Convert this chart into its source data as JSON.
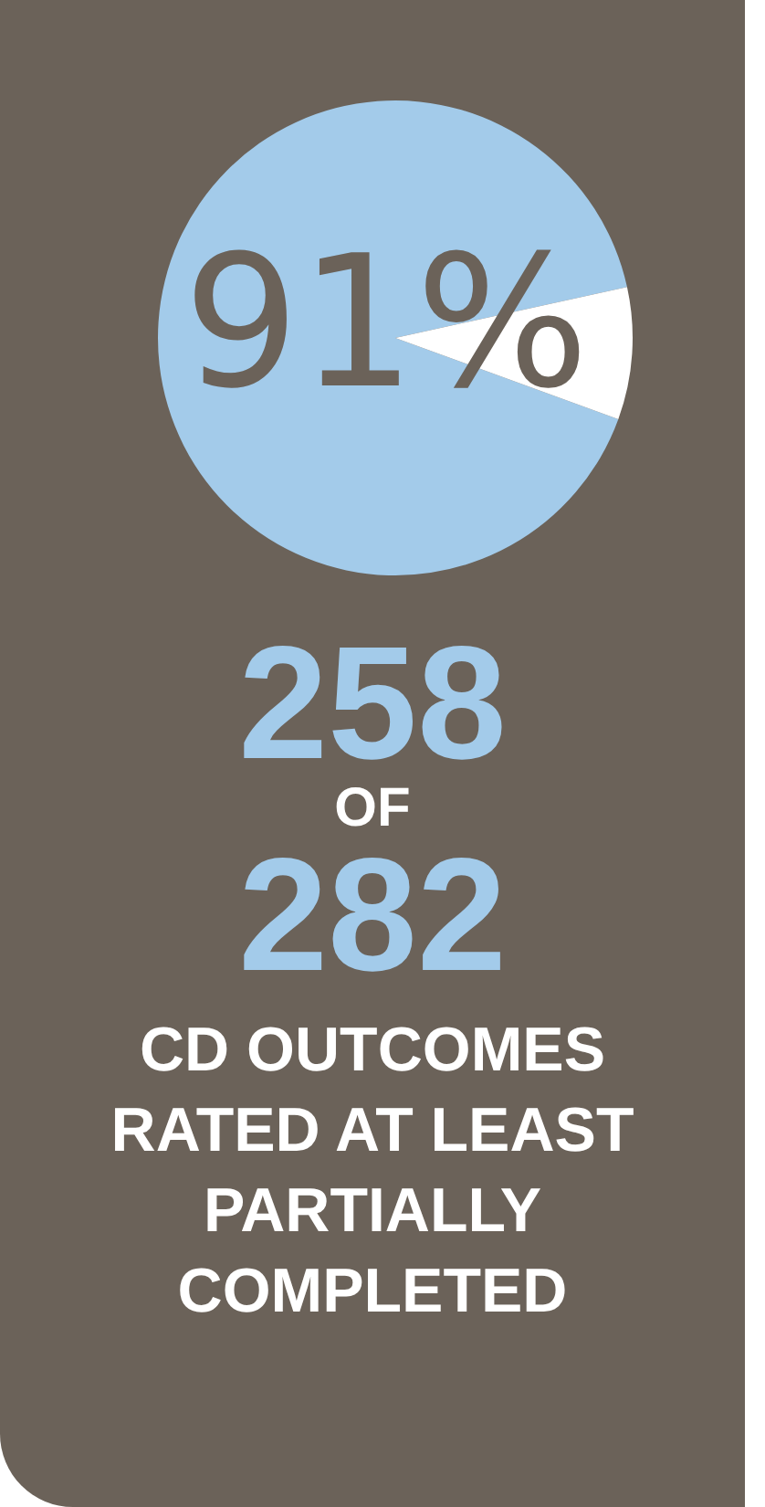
{
  "chart_data": {
    "type": "pie",
    "categories": [
      null,
      null
    ],
    "values": [
      91,
      9
    ],
    "colors": [
      "#a3cbea",
      "#ffffff"
    ],
    "value_labels": [
      "91%",
      null
    ],
    "annotations": [
      "258",
      "OF",
      "282",
      "CD OUTCOMES RATED AT LEAST PARTIALLY COMPLETED"
    ]
  }
}
